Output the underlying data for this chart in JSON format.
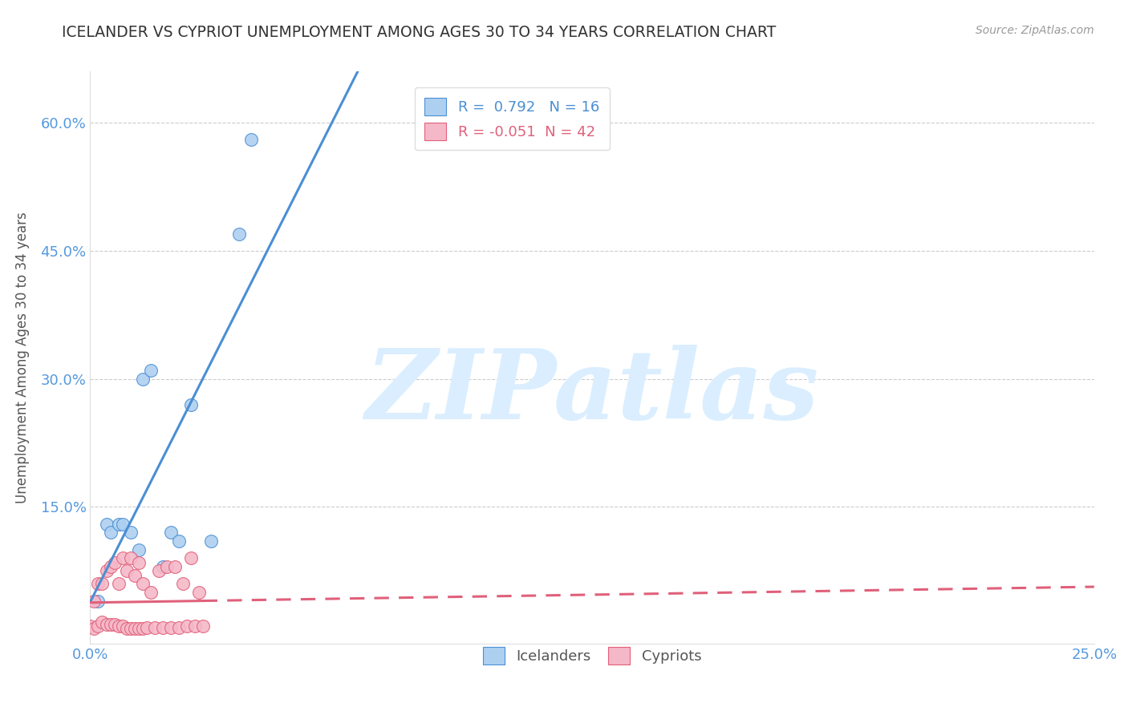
{
  "title": "ICELANDER VS CYPRIOT UNEMPLOYMENT AMONG AGES 30 TO 34 YEARS CORRELATION CHART",
  "source": "Source: ZipAtlas.com",
  "ylabel": "Unemployment Among Ages 30 to 34 years",
  "watermark": "ZIPatlas",
  "xlim": [
    0.0,
    0.25
  ],
  "ylim": [
    -0.01,
    0.66
  ],
  "x_ticks": [
    0.0,
    0.05,
    0.1,
    0.15,
    0.2,
    0.25
  ],
  "y_ticks": [
    0.0,
    0.15,
    0.3,
    0.45,
    0.6
  ],
  "x_tick_labels": [
    "0.0%",
    "",
    "",
    "",
    "",
    "25.0%"
  ],
  "y_tick_labels": [
    "",
    "15.0%",
    "30.0%",
    "45.0%",
    "60.0%"
  ],
  "icelanders": {
    "x": [
      0.002,
      0.004,
      0.005,
      0.007,
      0.008,
      0.01,
      0.012,
      0.013,
      0.015,
      0.018,
      0.02,
      0.022,
      0.025,
      0.03,
      0.037,
      0.04
    ],
    "y": [
      0.04,
      0.13,
      0.12,
      0.13,
      0.13,
      0.12,
      0.1,
      0.3,
      0.31,
      0.08,
      0.12,
      0.11,
      0.27,
      0.11,
      0.47,
      0.58
    ],
    "R": 0.792,
    "N": 16,
    "color": "#aed0f0",
    "line_color": "#4a8fd4"
  },
  "cypriots": {
    "x": [
      0.0,
      0.001,
      0.001,
      0.002,
      0.002,
      0.003,
      0.003,
      0.004,
      0.004,
      0.005,
      0.005,
      0.006,
      0.006,
      0.007,
      0.007,
      0.008,
      0.008,
      0.009,
      0.009,
      0.01,
      0.01,
      0.011,
      0.011,
      0.012,
      0.012,
      0.013,
      0.013,
      0.014,
      0.015,
      0.016,
      0.017,
      0.018,
      0.019,
      0.02,
      0.021,
      0.022,
      0.023,
      0.024,
      0.025,
      0.026,
      0.027,
      0.028
    ],
    "y": [
      0.01,
      0.008,
      0.04,
      0.01,
      0.06,
      0.015,
      0.06,
      0.012,
      0.075,
      0.012,
      0.08,
      0.012,
      0.085,
      0.01,
      0.06,
      0.01,
      0.09,
      0.008,
      0.075,
      0.008,
      0.09,
      0.008,
      0.07,
      0.008,
      0.085,
      0.008,
      0.06,
      0.009,
      0.05,
      0.009,
      0.075,
      0.009,
      0.08,
      0.009,
      0.08,
      0.009,
      0.06,
      0.01,
      0.09,
      0.01,
      0.05,
      0.01
    ],
    "R": -0.051,
    "N": 42,
    "color": "#f5b8c8",
    "line_color": "#e0607a"
  },
  "legend_icelander_color": "#aed0f0",
  "legend_cypriot_color": "#f5b8c8",
  "background_color": "#ffffff",
  "grid_color": "#cccccc",
  "title_color": "#333333",
  "axis_label_color": "#555555",
  "tick_color": "#5599dd",
  "watermark_color": "#daeeff"
}
